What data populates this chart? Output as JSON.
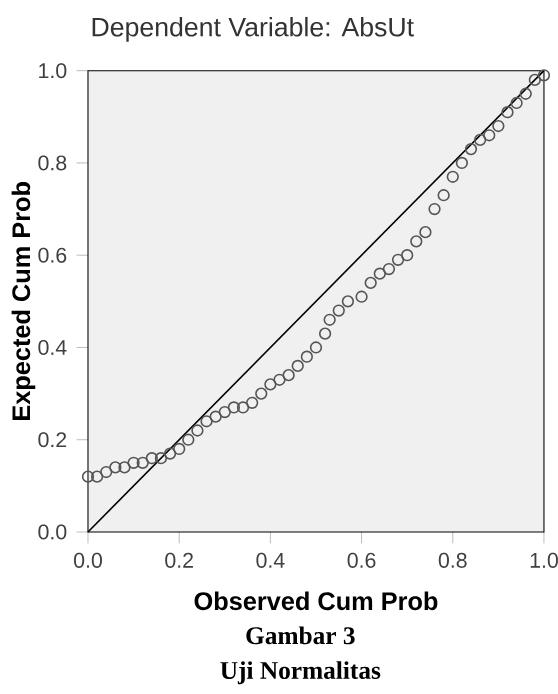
{
  "chart_data": {
    "type": "scatter",
    "title": "Dependent Variable: AbsUt",
    "xlabel": "Observed Cum Prob",
    "ylabel": "Expected Cum Prob",
    "xlim": [
      0,
      1
    ],
    "ylim": [
      0,
      1
    ],
    "xticks": [
      {
        "value": 0,
        "label": "0.0"
      },
      {
        "value": 0.2,
        "label": "0.2"
      },
      {
        "value": 0.4,
        "label": "0.4"
      },
      {
        "value": 0.6,
        "label": "0.6"
      },
      {
        "value": 0.8,
        "label": "0.8"
      },
      {
        "value": 1,
        "label": "1.0"
      }
    ],
    "yticks": [
      {
        "value": 0,
        "label": "0.0"
      },
      {
        "value": 0.2,
        "label": "0.2"
      },
      {
        "value": 0.4,
        "label": "0.4"
      },
      {
        "value": 0.6,
        "label": "0.6"
      },
      {
        "value": 0.8,
        "label": "0.8"
      },
      {
        "value": 1,
        "label": "1.0"
      }
    ],
    "series": [
      {
        "color": "#555555",
        "marker": "circle",
        "x": [
          0.0,
          0.02,
          0.04,
          0.06,
          0.08,
          0.1,
          0.12,
          0.14,
          0.16,
          0.18,
          0.2,
          0.22,
          0.24,
          0.26,
          0.28,
          0.3,
          0.32,
          0.34,
          0.36,
          0.38,
          0.4,
          0.42,
          0.44,
          0.46,
          0.48,
          0.5,
          0.52,
          0.53,
          0.55,
          0.57,
          0.6,
          0.62,
          0.64,
          0.66,
          0.68,
          0.7,
          0.72,
          0.74,
          0.76,
          0.78,
          0.8,
          0.82,
          0.84,
          0.86,
          0.88,
          0.9,
          0.92,
          0.94,
          0.96,
          0.98,
          1.0
        ],
        "values": [
          0.12,
          0.12,
          0.13,
          0.14,
          0.14,
          0.15,
          0.15,
          0.16,
          0.16,
          0.17,
          0.18,
          0.2,
          0.22,
          0.24,
          0.25,
          0.26,
          0.27,
          0.27,
          0.28,
          0.3,
          0.32,
          0.33,
          0.34,
          0.36,
          0.38,
          0.4,
          0.43,
          0.46,
          0.48,
          0.5,
          0.51,
          0.54,
          0.56,
          0.57,
          0.59,
          0.6,
          0.63,
          0.65,
          0.7,
          0.73,
          0.77,
          0.8,
          0.83,
          0.85,
          0.86,
          0.88,
          0.91,
          0.93,
          0.95,
          0.98,
          0.99
        ]
      },
      {
        "type": "line",
        "color": "#000000",
        "marker": "none",
        "x": [
          0,
          1
        ],
        "values": [
          0,
          1
        ]
      }
    ],
    "annotations": [
      "Gambar 3",
      "Uji Normalitas"
    ]
  }
}
